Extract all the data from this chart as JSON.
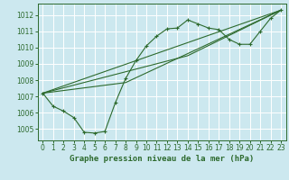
{
  "title": "Graphe pression niveau de la mer (hPa)",
  "background_color": "#cce8ef",
  "grid_color": "#ffffff",
  "line_color": "#2d6a2d",
  "x_ticks": [
    0,
    1,
    2,
    3,
    4,
    5,
    6,
    7,
    8,
    9,
    10,
    11,
    12,
    13,
    14,
    15,
    16,
    17,
    18,
    19,
    20,
    21,
    22,
    23
  ],
  "y_ticks": [
    1005,
    1006,
    1007,
    1008,
    1009,
    1010,
    1011,
    1012
  ],
  "ylim": [
    1004.3,
    1012.7
  ],
  "xlim": [
    -0.5,
    23.5
  ],
  "main_series_y": [
    1007.2,
    1006.4,
    1006.1,
    1005.7,
    1004.8,
    1004.75,
    1004.85,
    1006.6,
    1008.1,
    1009.2,
    1010.1,
    1010.7,
    1011.15,
    1011.2,
    1011.7,
    1011.45,
    1011.2,
    1011.1,
    1010.5,
    1010.2,
    1010.2,
    1011.0,
    1011.8,
    1012.3
  ],
  "line_straight1": {
    "x": [
      0,
      23
    ],
    "y": [
      1007.2,
      1012.3
    ]
  },
  "line_straight2": {
    "x": [
      0,
      14,
      23
    ],
    "y": [
      1007.2,
      1009.5,
      1012.3
    ]
  },
  "line_straight3": {
    "x": [
      0,
      8,
      23
    ],
    "y": [
      1007.2,
      1007.85,
      1012.3
    ]
  },
  "tick_fontsize": 5.5,
  "label_fontsize": 6.5
}
